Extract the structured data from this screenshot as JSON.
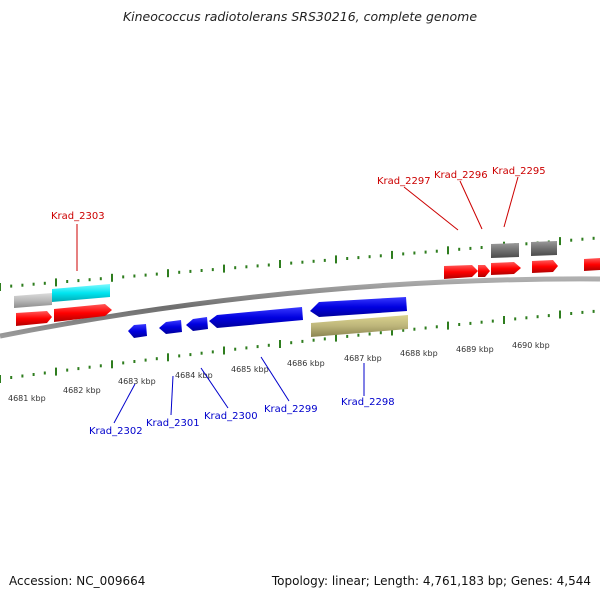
{
  "title": "Kineococcus radiotolerans SRS30216, complete genome",
  "footer": {
    "accession": "Accession: NC_009664",
    "summary": "Topology: linear; Length: 4,761,183 bp; Genes: 4,544"
  },
  "colors": {
    "backbone": "#8a8a8a",
    "tick": "#2e7d1e",
    "forward_gene": "#ff0000",
    "reverse_gene": "#0000dd",
    "forward_label": "#cc0000",
    "reverse_label": "#0000cc",
    "cyan_feature": "#00e5f0",
    "light_gray_feature": "#b8b8b8",
    "dark_gray_feature": "#707070",
    "khaki_feature": "#bdb57a"
  },
  "kbp_labels": [
    "4681 kbp",
    "4682 kbp",
    "4683 kbp",
    "4684 kbp",
    "4685 kbp",
    "4686 kbp",
    "4687 kbp",
    "4688 kbp",
    "4689 kbp",
    "4690 kbp"
  ],
  "forward_gene_labels": [
    "Krad_2303",
    "Krad_2297",
    "Krad_2296",
    "Krad_2295"
  ],
  "reverse_gene_labels": [
    "Krad_2302",
    "Krad_2301",
    "Krad_2300",
    "Krad_2299",
    "Krad_2298"
  ]
}
